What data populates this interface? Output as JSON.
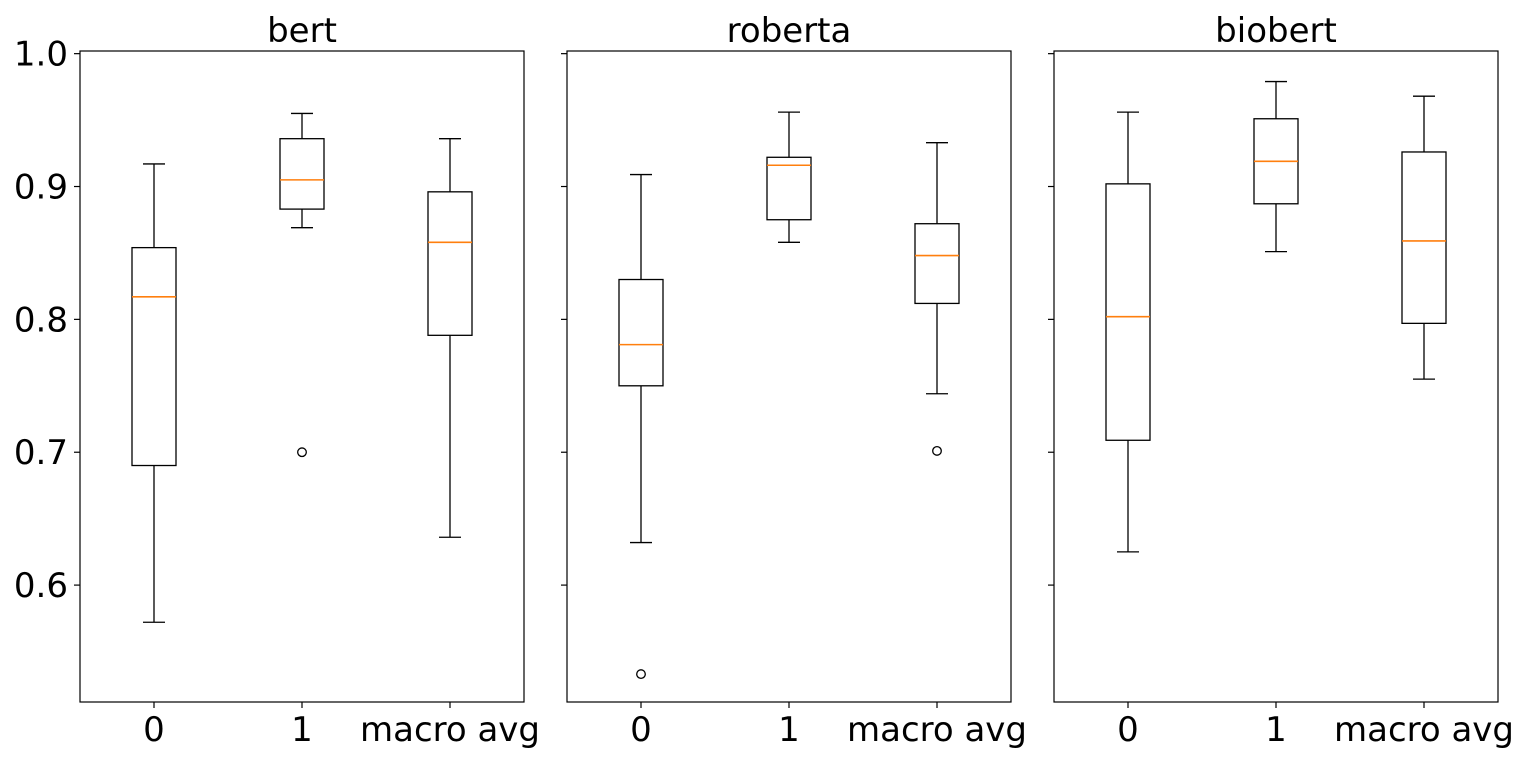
{
  "chart_data": {
    "type": "box",
    "ylim": [
      0.512,
      1.002
    ],
    "yticks": [
      0.6,
      0.7,
      0.8,
      0.9,
      1.0
    ],
    "ytick_labels": [
      "0.6",
      "0.7",
      "0.8",
      "0.9",
      "1.0"
    ],
    "sharey": true,
    "categories": [
      "0",
      "1",
      "macro avg"
    ],
    "colors": {
      "box": "#000000",
      "median": "#ff7f0e",
      "background": "#ffffff"
    },
    "panels": [
      {
        "title": "bert",
        "boxes": [
          {
            "category": "0",
            "whisker_low": 0.572,
            "q1": 0.69,
            "median": 0.817,
            "q3": 0.854,
            "whisker_high": 0.917,
            "outliers": []
          },
          {
            "category": "1",
            "whisker_low": 0.869,
            "q1": 0.883,
            "median": 0.905,
            "q3": 0.936,
            "whisker_high": 0.955,
            "outliers": [
              0.7
            ]
          },
          {
            "category": "macro avg",
            "whisker_low": 0.636,
            "q1": 0.788,
            "median": 0.858,
            "q3": 0.896,
            "whisker_high": 0.936,
            "outliers": []
          }
        ]
      },
      {
        "title": "roberta",
        "boxes": [
          {
            "category": "0",
            "whisker_low": 0.632,
            "q1": 0.75,
            "median": 0.781,
            "q3": 0.83,
            "whisker_high": 0.909,
            "outliers": [
              0.533
            ]
          },
          {
            "category": "1",
            "whisker_low": 0.858,
            "q1": 0.875,
            "median": 0.916,
            "q3": 0.922,
            "whisker_high": 0.956,
            "outliers": []
          },
          {
            "category": "macro avg",
            "whisker_low": 0.744,
            "q1": 0.812,
            "median": 0.848,
            "q3": 0.872,
            "whisker_high": 0.933,
            "outliers": [
              0.701
            ]
          }
        ]
      },
      {
        "title": "biobert",
        "boxes": [
          {
            "category": "0",
            "whisker_low": 0.625,
            "q1": 0.709,
            "median": 0.802,
            "q3": 0.902,
            "whisker_high": 0.956,
            "outliers": []
          },
          {
            "category": "1",
            "whisker_low": 0.851,
            "q1": 0.887,
            "median": 0.919,
            "q3": 0.951,
            "whisker_high": 0.979,
            "outliers": []
          },
          {
            "category": "macro avg",
            "whisker_low": 0.755,
            "q1": 0.797,
            "median": 0.859,
            "q3": 0.926,
            "whisker_high": 0.968,
            "outliers": []
          }
        ]
      }
    ]
  }
}
